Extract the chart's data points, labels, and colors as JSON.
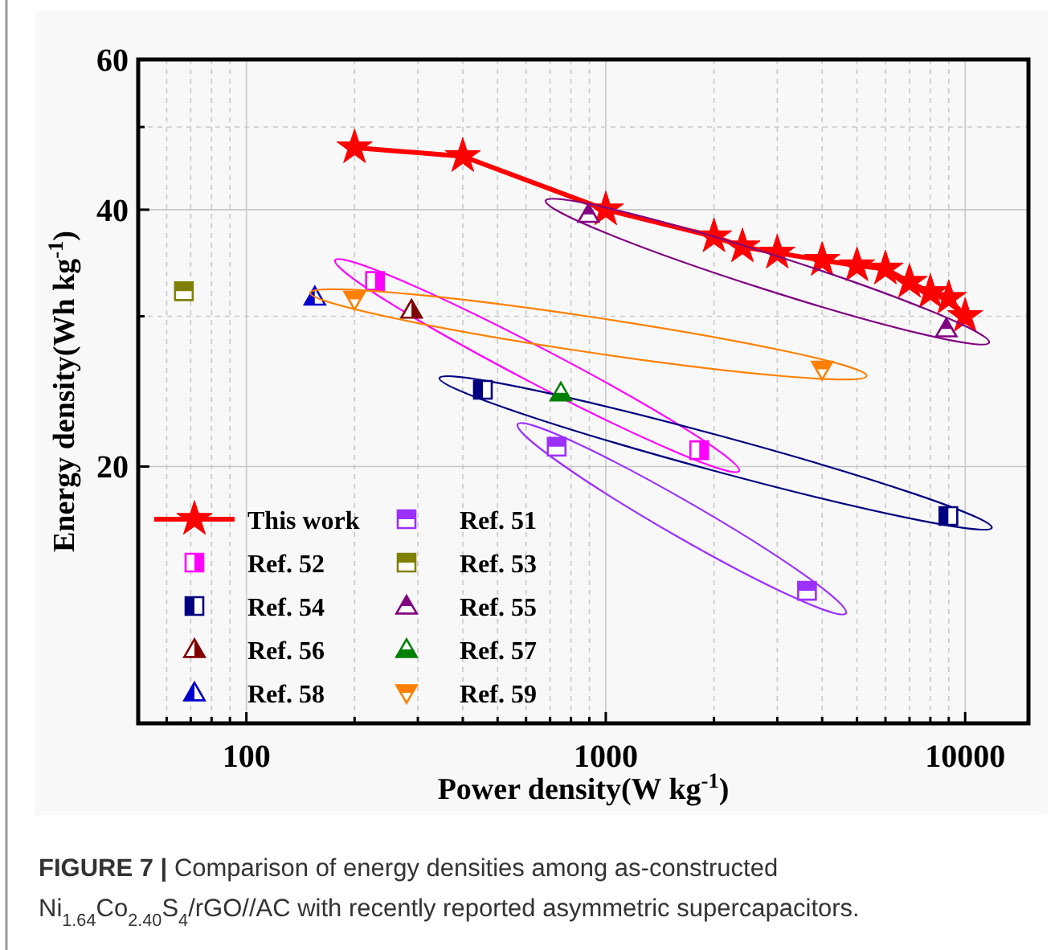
{
  "chart_data": {
    "type": "scatter",
    "log": "xy",
    "xlabel": "Power density(W kg$^{-1}$)",
    "ylabel": "Energy density(Wh kg$^{-1}$)",
    "xlim": [
      50,
      15000
    ],
    "ylim": [
      10,
      60
    ],
    "xticks": [
      {
        "value": 60,
        "label": null
      },
      {
        "value": 70,
        "label": null
      },
      {
        "value": 80,
        "label": null
      },
      {
        "value": 90,
        "label": null
      },
      100,
      {
        "value": 200,
        "label": null
      },
      {
        "value": 300,
        "label": null
      },
      {
        "value": 400,
        "label": null
      },
      {
        "value": 500,
        "label": null
      },
      {
        "value": 600,
        "label": null
      },
      {
        "value": 700,
        "label": null
      },
      {
        "value": 800,
        "label": null
      },
      {
        "value": 900,
        "label": null
      },
      1000,
      {
        "value": 2000,
        "label": null
      },
      {
        "value": 3000,
        "label": null
      },
      {
        "value": 4000,
        "label": null
      },
      {
        "value": 5000,
        "label": null
      },
      {
        "value": 6000,
        "label": null
      },
      {
        "value": 7000,
        "label": null
      },
      {
        "value": 8000,
        "label": null
      },
      {
        "value": 9000,
        "label": null
      },
      10000
    ],
    "yticks": [
      20,
      {
        "value": 30,
        "label": null
      },
      40,
      {
        "value": 50,
        "label": null
      },
      60
    ],
    "grid": true,
    "legend": "bottom left",
    "series": [
      {
        "name": "This work",
        "type": "line",
        "marker": "star",
        "line_style": "solid",
        "color": "#ff0000",
        "x": [
          200,
          400,
          1000,
          2000,
          2400,
          3000,
          4000,
          5000,
          6000,
          7000,
          8000,
          9000,
          10000
        ],
        "values": [
          47.3,
          46.2,
          40,
          37.2,
          36.2,
          35.6,
          34.9,
          34.4,
          34.1,
          32.9,
          32.0,
          31.5,
          30.0
        ]
      },
      {
        "name": "Ref. 51",
        "marker": "square",
        "color": "#9b30ff",
        "x": [
          730,
          3630
        ],
        "values": [
          21.1,
          14.3
        ]
      },
      {
        "name": "Ref. 52",
        "marker": "square",
        "color": "#ff00ff",
        "x": [
          228,
          1820
        ],
        "values": [
          33.0,
          20.9
        ]
      },
      {
        "name": "Ref. 53",
        "marker": "square",
        "color": "#808000",
        "x": [
          67
        ],
        "values": [
          32.1
        ]
      },
      {
        "name": "Ref. 54",
        "marker": "square",
        "color": "#000080",
        "x": [
          455,
          8980
        ],
        "values": [
          24.6,
          17.5
        ]
      },
      {
        "name": "Ref. 55",
        "marker": "triangle",
        "color": "#800080",
        "x": [
          895,
          8860
        ],
        "values": [
          39.5,
          29.0
        ]
      },
      {
        "name": "Ref. 56",
        "marker": "triangle",
        "color": "#800000",
        "x": [
          288
        ],
        "values": [
          30.5
        ]
      },
      {
        "name": "Ref. 57",
        "marker": "triangle",
        "color": "#008000",
        "x": [
          750
        ],
        "values": [
          24.4
        ]
      },
      {
        "name": "Ref. 58",
        "marker": "triangle",
        "color": "#0000cd",
        "x": [
          155
        ],
        "values": [
          31.6
        ]
      },
      {
        "name": "Ref. 59",
        "marker": "triangle-down",
        "color": "#ff8000",
        "x": [
          200,
          4000
        ],
        "values": [
          31.4,
          26.0
        ]
      }
    ],
    "annotations": [
      "FIGURE 7 | Comparison of energy densities among as-constructed",
      "Ni$_{1.64}$Co$_{2.40}$S$_{4}$/rGO//AC with recently reported asymmetric supercapacitors."
    ]
  }
}
